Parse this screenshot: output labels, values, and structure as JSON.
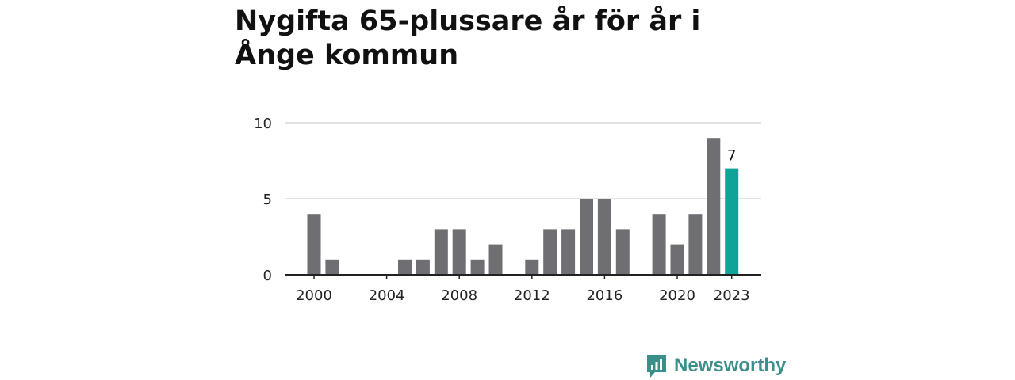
{
  "title": "Nygifta 65-plussare år för år i Ånge kommun",
  "brand": {
    "name": "Newsworthy",
    "icon": "newsworthy-logo-icon",
    "color": "#3b8f8a"
  },
  "colors": {
    "bar": "#6f6e73",
    "highlight": "#0fa39a",
    "grid": "#d9d9d9",
    "axis": "#222222"
  },
  "chart_data": {
    "type": "bar",
    "title": "Nygifta 65-plussare år för år i Ånge kommun",
    "xlabel": "",
    "ylabel": "",
    "ylim": [
      0,
      10
    ],
    "yticks": [
      0,
      5,
      10
    ],
    "xticks": [
      2000,
      2004,
      2008,
      2012,
      2016,
      2020,
      2023
    ],
    "grid": true,
    "categories": [
      2000,
      2001,
      2002,
      2003,
      2004,
      2005,
      2006,
      2007,
      2008,
      2009,
      2010,
      2011,
      2012,
      2013,
      2014,
      2015,
      2016,
      2017,
      2018,
      2019,
      2020,
      2021,
      2022,
      2023
    ],
    "values": [
      4,
      1,
      0,
      0,
      0,
      1,
      1,
      3,
      3,
      1,
      2,
      0,
      1,
      3,
      3,
      5,
      5,
      3,
      0,
      4,
      2,
      4,
      9,
      7
    ],
    "highlight_index": 23,
    "annotation": {
      "category": 2023,
      "label": "7"
    }
  }
}
